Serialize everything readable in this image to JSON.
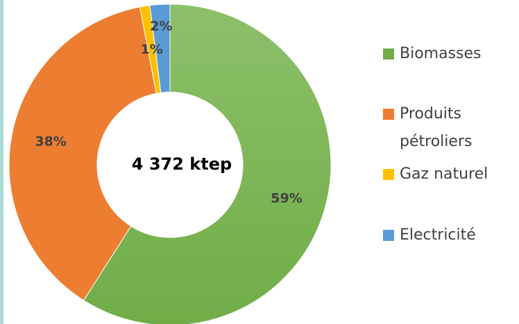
{
  "chart_data": {
    "type": "donut",
    "center_label": "4 372 ktep",
    "categories": [
      "Biomasses",
      "Produits pétroliers",
      "Gaz naturel",
      "Electricité"
    ],
    "values": [
      59,
      38,
      1,
      2
    ],
    "value_labels": [
      "59%",
      "38%",
      "1%",
      "2%"
    ],
    "colors": [
      "#70ad47",
      "#ed7d31",
      "#ffc000",
      "#5b9bd5"
    ],
    "legend": "right"
  }
}
